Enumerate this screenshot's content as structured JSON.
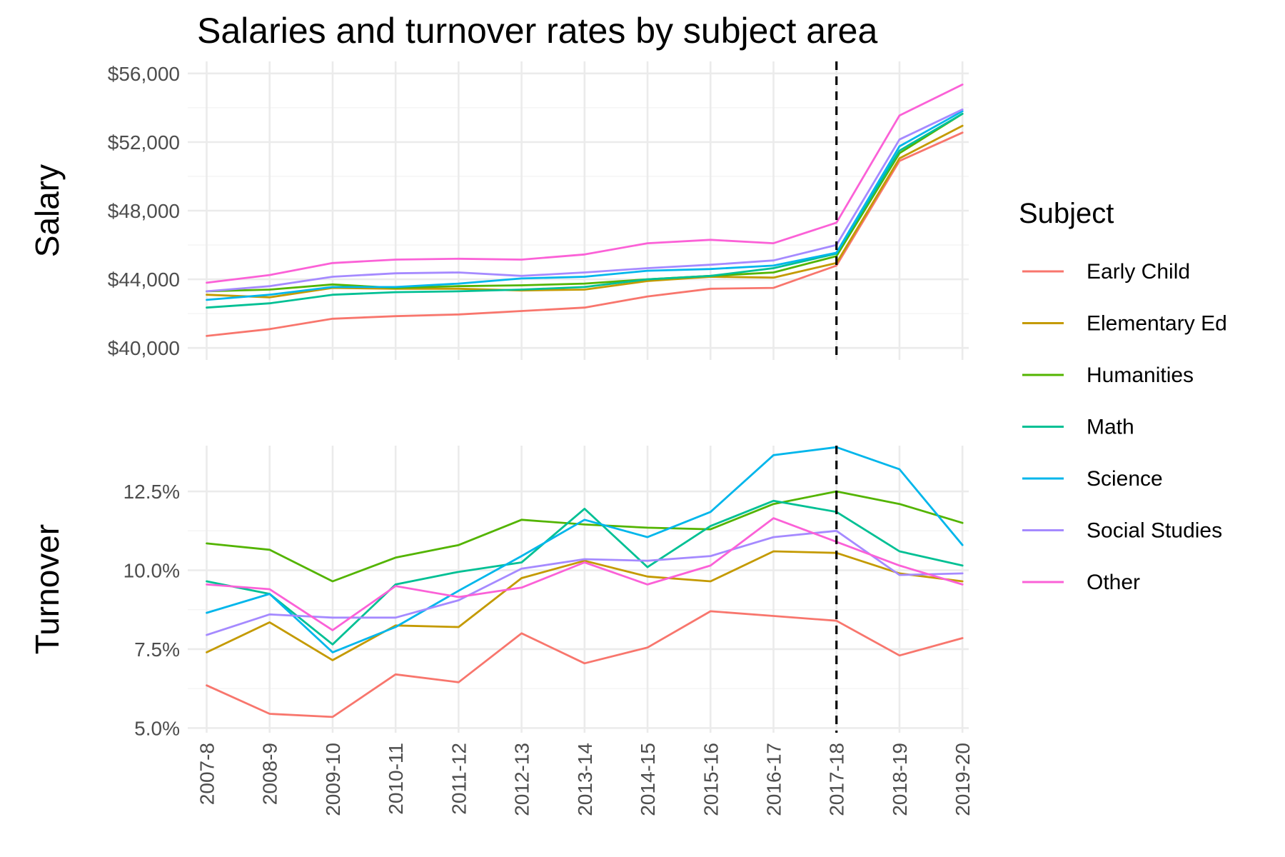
{
  "chart_data": {
    "type": "line",
    "title": "Salaries and turnover rates by subject area",
    "x": [
      "2007-8",
      "2008-9",
      "2009-10",
      "2010-11",
      "2011-12",
      "2012-13",
      "2013-14",
      "2014-15",
      "2015-16",
      "2016-17",
      "2017-18",
      "2018-19",
      "2019-20"
    ],
    "reference_line": {
      "x": "2017-18",
      "style": "dashed",
      "color": "#000000"
    },
    "legend": {
      "title": "Subject",
      "placement": "right"
    },
    "grid": true,
    "colors": {
      "Early Child": "#F8766D",
      "Elementary Ed": "#C49A00",
      "Humanities": "#53B400",
      "Math": "#00C094",
      "Science": "#00B6EB",
      "Social Studies": "#A58AFF",
      "Other": "#FB61D7"
    },
    "panels": [
      {
        "label": "Salary",
        "ylim": [
          39300,
          56700
        ],
        "y_ticks": [
          40000,
          44000,
          48000,
          52000,
          56000
        ],
        "y_tick_labels": [
          "$40,000",
          "$44,000",
          "$48,000",
          "$52,000",
          "$56,000"
        ],
        "series": [
          {
            "name": "Early Child",
            "values": [
              40700,
              41100,
              41700,
              41850,
              41950,
              42150,
              42350,
              43000,
              43450,
              43500,
              44800,
              50900,
              52550
            ]
          },
          {
            "name": "Elementary Ed",
            "values": [
              43100,
              42950,
              43500,
              43450,
              43450,
              43350,
              43400,
              43900,
              44150,
              44100,
              44950,
              51050,
              52950
            ]
          },
          {
            "name": "Humanities",
            "values": [
              43300,
              43400,
              43700,
              43500,
              43600,
              43650,
              43750,
              44000,
              44200,
              44400,
              45350,
              51350,
              53650
            ]
          },
          {
            "name": "Math",
            "values": [
              42350,
              42600,
              43100,
              43250,
              43300,
              43400,
              43550,
              44000,
              44200,
              44650,
              45500,
              51500,
              53650
            ]
          },
          {
            "name": "Science",
            "values": [
              42800,
              43100,
              43550,
              43550,
              43750,
              44050,
              44150,
              44500,
              44600,
              44800,
              45550,
              51750,
              53800
            ]
          },
          {
            "name": "Social Studies",
            "values": [
              43300,
              43600,
              44150,
              44350,
              44400,
              44200,
              44400,
              44650,
              44850,
              45100,
              46000,
              52150,
              53900
            ]
          },
          {
            "name": "Other",
            "values": [
              43800,
              44250,
              44950,
              45150,
              45200,
              45150,
              45450,
              46100,
              46300,
              46100,
              47300,
              53550,
              55350
            ]
          }
        ]
      },
      {
        "label": "Turnover",
        "ylim": [
          4.85,
          13.95
        ],
        "y_ticks": [
          5.0,
          7.5,
          10.0,
          12.5
        ],
        "y_tick_labels": [
          "5.0%",
          "7.5%",
          "10.0%",
          "12.5%"
        ],
        "series": [
          {
            "name": "Early Child",
            "values": [
              6.35,
              5.45,
              5.35,
              6.7,
              6.45,
              8.0,
              7.05,
              7.55,
              8.7,
              8.55,
              8.4,
              7.3,
              7.85
            ]
          },
          {
            "name": "Elementary Ed",
            "values": [
              7.4,
              8.35,
              7.15,
              8.25,
              8.2,
              9.75,
              10.3,
              9.8,
              9.65,
              10.6,
              10.55,
              9.9,
              9.65
            ]
          },
          {
            "name": "Humanities",
            "values": [
              10.85,
              10.65,
              9.65,
              10.4,
              10.8,
              11.6,
              11.45,
              11.35,
              11.3,
              12.1,
              12.5,
              12.1,
              11.5
            ]
          },
          {
            "name": "Math",
            "values": [
              9.65,
              9.25,
              7.65,
              9.55,
              9.95,
              10.25,
              11.95,
              10.1,
              11.4,
              12.2,
              11.85,
              10.6,
              10.15
            ]
          },
          {
            "name": "Science",
            "values": [
              8.65,
              9.25,
              7.4,
              8.2,
              9.35,
              10.45,
              11.6,
              11.05,
              11.85,
              13.65,
              13.9,
              13.2,
              10.8
            ]
          },
          {
            "name": "Social Studies",
            "values": [
              7.95,
              8.6,
              8.5,
              8.5,
              9.05,
              10.05,
              10.35,
              10.3,
              10.45,
              11.05,
              11.25,
              9.85,
              9.9
            ]
          },
          {
            "name": "Other",
            "values": [
              9.55,
              9.4,
              8.1,
              9.5,
              9.15,
              9.45,
              10.25,
              9.55,
              10.15,
              11.65,
              10.9,
              10.15,
              9.55
            ]
          }
        ]
      }
    ]
  }
}
